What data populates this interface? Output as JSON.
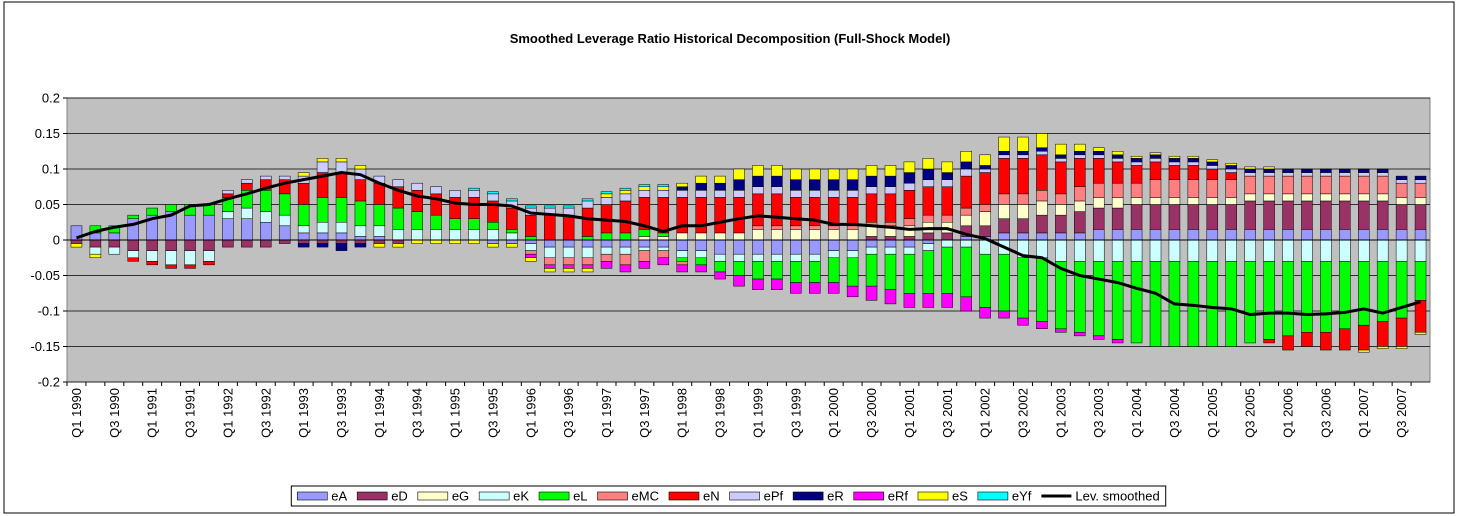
{
  "chart_data": {
    "type": "bar",
    "stacked": true,
    "title": "Smoothed Leverage Ratio Historical Decomposition (Full-Shock Model)",
    "categories": [
      "Q1 1990",
      null,
      "Q3 1990",
      null,
      "Q1 1991",
      null,
      "Q3 1991",
      null,
      "Q1 1992",
      null,
      "Q3 1992",
      null,
      "Q1 1993",
      null,
      "Q3 1993",
      null,
      "Q1 1994",
      null,
      "Q3 1994",
      null,
      "Q1 1995",
      null,
      "Q3 1995",
      null,
      "Q1 1996",
      null,
      "Q3 1996",
      null,
      "Q1 1997",
      null,
      "Q3 1997",
      null,
      "Q1 1998",
      null,
      "Q3 1998",
      null,
      "Q1 1999",
      null,
      "Q3 1999",
      null,
      "Q1 2000",
      null,
      "Q3 2000",
      null,
      "Q1 2001",
      null,
      "Q3 2001",
      null,
      "Q1 2002",
      null,
      "Q3 2002",
      null,
      "Q1 2003",
      null,
      "Q3 2003",
      null,
      "Q1 2004",
      null,
      "Q3 2004",
      null,
      "Q1 2005",
      null,
      "Q3 2005",
      null,
      "Q1 2006",
      null,
      "Q3 2006",
      null,
      "Q1 2007",
      null,
      "Q3 2007",
      null
    ],
    "ylim": [
      -0.2,
      0.2
    ],
    "yticks": [
      0.2,
      0.15,
      0.1,
      0.05,
      0,
      -0.05,
      -0.1,
      -0.15,
      -0.2
    ],
    "grid": true,
    "plot_background": "#c0c0c0",
    "legend": "bottom",
    "series": [
      {
        "name": "eA",
        "color": "#9999ff",
        "values": [
          0.02,
          0.01,
          0.01,
          0.03,
          0.035,
          0.04,
          0.035,
          0.035,
          0.03,
          0.03,
          0.025,
          0.02,
          0.01,
          0.01,
          0.01,
          0.005,
          0.005,
          0,
          0,
          0,
          0,
          0,
          -0.005,
          -0.005,
          -0.005,
          -0.01,
          -0.01,
          -0.01,
          -0.01,
          -0.01,
          -0.01,
          -0.01,
          -0.015,
          -0.015,
          -0.02,
          -0.02,
          -0.02,
          -0.02,
          -0.02,
          -0.02,
          -0.015,
          -0.015,
          -0.01,
          -0.01,
          -0.01,
          -0.005,
          0,
          0.005,
          0.005,
          0.01,
          0.01,
          0.01,
          0.01,
          0.01,
          0.015,
          0.015,
          0.015,
          0.015,
          0.015,
          0.015,
          0.015,
          0.015,
          0.015,
          0.015,
          0.015,
          0.015,
          0.015,
          0.015,
          0.015,
          0.015,
          0.015,
          0.015
        ]
      },
      {
        "name": "eD",
        "color": "#993366",
        "values": [
          -0.005,
          -0.01,
          -0.01,
          -0.015,
          -0.015,
          -0.015,
          -0.015,
          -0.015,
          -0.01,
          -0.01,
          -0.01,
          -0.005,
          -0.005,
          -0.005,
          -0.005,
          -0.005,
          -0.005,
          -0.005,
          0,
          0,
          0,
          0,
          0,
          0,
          0,
          0,
          0,
          0,
          0,
          0,
          0,
          0,
          0,
          0,
          0,
          0,
          0,
          0,
          0,
          0,
          0,
          0,
          0.005,
          0.005,
          0.005,
          0.01,
          0.01,
          0.015,
          0.015,
          0.02,
          0.02,
          0.025,
          0.025,
          0.03,
          0.03,
          0.03,
          0.035,
          0.035,
          0.035,
          0.035,
          0.035,
          0.035,
          0.04,
          0.04,
          0.04,
          0.04,
          0.04,
          0.04,
          0.04,
          0.04,
          0.035,
          0.035
        ]
      },
      {
        "name": "eG",
        "color": "#ffffcc",
        "values": [
          0,
          0,
          0,
          0,
          0,
          0,
          0,
          0,
          0,
          0,
          0,
          0,
          0,
          0,
          0,
          0,
          0,
          0,
          0,
          0,
          0,
          0,
          0,
          0,
          0,
          0,
          0,
          0,
          0,
          0,
          0.005,
          0.005,
          0.01,
          0.01,
          0.01,
          0.01,
          0.015,
          0.015,
          0.015,
          0.015,
          0.015,
          0.015,
          0.015,
          0.015,
          0.015,
          0.015,
          0.015,
          0.015,
          0.02,
          0.02,
          0.02,
          0.02,
          0.015,
          0.015,
          0.015,
          0.015,
          0.01,
          0.01,
          0.01,
          0.01,
          0.01,
          0.01,
          0.01,
          0.01,
          0.01,
          0.01,
          0.01,
          0.01,
          0.01,
          0.01,
          0.01,
          0.01
        ]
      },
      {
        "name": "eK",
        "color": "#ccffff",
        "values": [
          0,
          -0.01,
          -0.01,
          -0.01,
          -0.015,
          -0.02,
          -0.02,
          -0.015,
          0.01,
          0.015,
          0.015,
          0.015,
          0.01,
          0.015,
          0.015,
          0.015,
          0.015,
          0.015,
          0.015,
          0.015,
          0.015,
          0.015,
          0.015,
          0.01,
          -0.01,
          -0.015,
          -0.015,
          -0.015,
          -0.01,
          -0.01,
          -0.005,
          -0.005,
          -0.01,
          -0.01,
          -0.01,
          -0.01,
          -0.01,
          -0.01,
          -0.01,
          -0.01,
          -0.01,
          -0.01,
          -0.01,
          -0.01,
          -0.01,
          -0.01,
          -0.01,
          -0.01,
          -0.02,
          -0.02,
          -0.025,
          -0.025,
          -0.03,
          -0.03,
          -0.03,
          -0.03,
          -0.03,
          -0.03,
          -0.03,
          -0.03,
          -0.03,
          -0.03,
          -0.03,
          -0.03,
          -0.03,
          -0.03,
          -0.03,
          -0.03,
          -0.03,
          -0.03,
          -0.03,
          -0.03
        ]
      },
      {
        "name": "eL",
        "color": "#00ff00",
        "values": [
          0,
          0.01,
          0.01,
          0.005,
          0.01,
          0.01,
          0.015,
          0.015,
          0.02,
          0.025,
          0.03,
          0.03,
          0.03,
          0.035,
          0.035,
          0.035,
          0.03,
          0.03,
          0.025,
          0.02,
          0.015,
          0.015,
          0.01,
          0.005,
          0.005,
          0,
          0,
          0.005,
          0.01,
          0.01,
          0.01,
          0.005,
          -0.005,
          -0.01,
          -0.015,
          -0.02,
          -0.025,
          -0.025,
          -0.03,
          -0.03,
          -0.035,
          -0.04,
          -0.045,
          -0.05,
          -0.055,
          -0.06,
          -0.065,
          -0.07,
          -0.075,
          -0.08,
          -0.085,
          -0.09,
          -0.095,
          -0.1,
          -0.105,
          -0.11,
          -0.115,
          -0.12,
          -0.12,
          -0.12,
          -0.12,
          -0.12,
          -0.115,
          -0.11,
          -0.105,
          -0.1,
          -0.1,
          -0.095,
          -0.09,
          -0.085,
          -0.08,
          -0.055
        ]
      },
      {
        "name": "eMC",
        "color": "#ff8080",
        "values": [
          0,
          0,
          0,
          0,
          0,
          0,
          0,
          0,
          0,
          0,
          0,
          0,
          0,
          0,
          0,
          0,
          0,
          0,
          0,
          0,
          0,
          0,
          0,
          0,
          -0.005,
          -0.01,
          -0.01,
          -0.01,
          -0.01,
          -0.015,
          -0.015,
          -0.01,
          -0.005,
          0,
          0,
          0,
          0.005,
          0.005,
          0.005,
          0.005,
          0.005,
          0.005,
          0.005,
          0.005,
          0.01,
          0.01,
          0.01,
          0.01,
          0.01,
          0.015,
          0.015,
          0.015,
          0.015,
          0.02,
          0.02,
          0.02,
          0.02,
          0.025,
          0.025,
          0.025,
          0.025,
          0.025,
          0.025,
          0.025,
          0.025,
          0.025,
          0.025,
          0.025,
          0.025,
          0.025,
          0.02,
          0.02
        ]
      },
      {
        "name": "eN",
        "color": "#ff0000",
        "values": [
          0,
          0,
          0,
          -0.005,
          -0.005,
          -0.005,
          -0.005,
          -0.005,
          0.005,
          0.01,
          0.015,
          0.02,
          0.03,
          0.035,
          0.035,
          0.03,
          0.03,
          0.03,
          0.03,
          0.03,
          0.03,
          0.03,
          0.03,
          0.03,
          0.03,
          0.035,
          0.035,
          0.04,
          0.04,
          0.045,
          0.045,
          0.05,
          0.05,
          0.05,
          0.05,
          0.05,
          0.045,
          0.045,
          0.04,
          0.04,
          0.04,
          0.04,
          0.04,
          0.04,
          0.04,
          0.04,
          0.04,
          0.045,
          0.045,
          0.05,
          0.05,
          0.05,
          0.045,
          0.04,
          0.035,
          0.03,
          0.025,
          0.025,
          0.02,
          0.02,
          0.015,
          0.01,
          0,
          -0.005,
          -0.02,
          -0.02,
          -0.025,
          -0.03,
          -0.035,
          -0.035,
          -0.04,
          -0.045
        ]
      },
      {
        "name": "ePf",
        "color": "#ccccff",
        "values": [
          0,
          0,
          0,
          0,
          0,
          0,
          0,
          0,
          0.005,
          0.005,
          0.005,
          0.005,
          0.01,
          0.015,
          0.015,
          0.015,
          0.01,
          0.01,
          0.01,
          0.01,
          0.01,
          0.01,
          0.01,
          0.01,
          0.01,
          0.01,
          0.01,
          0.01,
          0.01,
          0.01,
          0.01,
          0.01,
          0.01,
          0.01,
          0.01,
          0.01,
          0.01,
          0.01,
          0.01,
          0.01,
          0.01,
          0.01,
          0.01,
          0.01,
          0.01,
          0.01,
          0.01,
          0.01,
          0.005,
          0.005,
          0.005,
          0.005,
          0.005,
          0.005,
          0.005,
          0.005,
          0.005,
          0.005,
          0.005,
          0.005,
          0.005,
          0.005,
          0.005,
          0.005,
          0.005,
          0.005,
          0.005,
          0.005,
          0.005,
          0.005,
          0.005,
          0.005
        ]
      },
      {
        "name": "eR",
        "color": "#000080",
        "values": [
          0,
          0,
          0,
          0,
          0,
          0,
          0,
          0,
          0,
          0,
          0,
          0,
          -0.005,
          -0.005,
          -0.01,
          -0.005,
          0,
          0,
          0,
          0,
          0,
          0,
          0,
          0,
          0,
          0,
          0,
          0,
          0,
          0,
          0,
          0,
          0.005,
          0.01,
          0.01,
          0.015,
          0.015,
          0.015,
          0.015,
          0.015,
          0.015,
          0.015,
          0.015,
          0.015,
          0.015,
          0.015,
          0.01,
          0.01,
          0.005,
          0.005,
          0.005,
          0.005,
          0.005,
          0.005,
          0.005,
          0.005,
          0.005,
          0.005,
          0.005,
          0.005,
          0.005,
          0.005,
          0.005,
          0.005,
          0.005,
          0.005,
          0.005,
          0.005,
          0.005,
          0.005,
          0.005,
          0.005
        ]
      },
      {
        "name": "eRf",
        "color": "#ff00ff",
        "values": [
          0,
          0,
          0,
          0,
          0,
          0,
          0,
          0,
          0,
          0,
          0,
          0,
          0,
          0,
          0,
          0,
          0,
          0,
          0,
          0,
          0,
          0,
          0,
          0,
          -0.005,
          -0.005,
          -0.005,
          -0.005,
          -0.01,
          -0.01,
          -0.01,
          -0.01,
          -0.01,
          -0.01,
          -0.01,
          -0.015,
          -0.015,
          -0.015,
          -0.015,
          -0.015,
          -0.015,
          -0.015,
          -0.02,
          -0.02,
          -0.02,
          -0.02,
          -0.02,
          -0.02,
          -0.015,
          -0.01,
          -0.01,
          -0.01,
          -0.005,
          -0.005,
          -0.005,
          -0.005,
          0,
          0,
          0,
          0,
          0,
          0,
          0,
          0,
          0,
          0,
          0,
          0,
          0,
          0,
          0,
          0
        ]
      },
      {
        "name": "eS",
        "color": "#ffff00",
        "values": [
          -0.005,
          -0.005,
          0,
          0,
          0,
          0,
          0,
          0,
          0,
          0,
          0,
          0,
          0.005,
          0.005,
          0.005,
          0.005,
          -0.005,
          -0.005,
          -0.005,
          -0.005,
          -0.005,
          -0.005,
          -0.005,
          -0.005,
          -0.005,
          -0.005,
          -0.005,
          -0.005,
          0.005,
          0.005,
          0.005,
          0.005,
          0.005,
          0.01,
          0.01,
          0.015,
          0.015,
          0.015,
          0.015,
          0.015,
          0.015,
          0.015,
          0.015,
          0.015,
          0.015,
          0.015,
          0.015,
          0.015,
          0.015,
          0.02,
          0.02,
          0.02,
          0.015,
          0.01,
          0.005,
          0.005,
          0.003,
          0.003,
          0.003,
          0.003,
          0.003,
          0.003,
          0.003,
          0.003,
          0,
          0,
          0,
          0,
          -0.003,
          -0.003,
          -0.003,
          -0.003
        ]
      },
      {
        "name": "eYf",
        "color": "#00ffff",
        "values": [
          0,
          0,
          0,
          0,
          0,
          0,
          0,
          0,
          0,
          0,
          0,
          0,
          0,
          0,
          0,
          0,
          0,
          0,
          0,
          0,
          0,
          0.003,
          0.003,
          0.003,
          0.003,
          0.003,
          0.003,
          0.003,
          0.003,
          0.003,
          0.003,
          0.003,
          0,
          0,
          0,
          0,
          0,
          0,
          0,
          0,
          0,
          0,
          0,
          0,
          0,
          0,
          0,
          0,
          0,
          0,
          0,
          0,
          0,
          0,
          0,
          0,
          0,
          0,
          0,
          0,
          0,
          0,
          0,
          0,
          0,
          0,
          0,
          0,
          0,
          0,
          0,
          0
        ]
      },
      {
        "name": "Lev. smoothed",
        "color": "#000000",
        "type": "line",
        "values": [
          0.003,
          0.012,
          0.018,
          0.022,
          0.03,
          0.035,
          0.048,
          0.05,
          0.058,
          0.065,
          0.073,
          0.08,
          0.085,
          0.09,
          0.095,
          0.092,
          0.08,
          0.07,
          0.062,
          0.058,
          0.052,
          0.05,
          0.05,
          0.048,
          0.038,
          0.036,
          0.034,
          0.03,
          0.028,
          0.026,
          0.02,
          0.012,
          0.02,
          0.02,
          0.025,
          0.03,
          0.034,
          0.032,
          0.03,
          0.028,
          0.022,
          0.022,
          0.02,
          0.018,
          0.015,
          0.016,
          0.016,
          0.008,
          0.002,
          -0.01,
          -0.022,
          -0.025,
          -0.04,
          -0.05,
          -0.055,
          -0.06,
          -0.068,
          -0.075,
          -0.09,
          -0.092,
          -0.095,
          -0.097,
          -0.105,
          -0.103,
          -0.103,
          -0.105,
          -0.104,
          -0.102,
          -0.097,
          -0.103,
          -0.095,
          -0.087
        ]
      }
    ]
  }
}
